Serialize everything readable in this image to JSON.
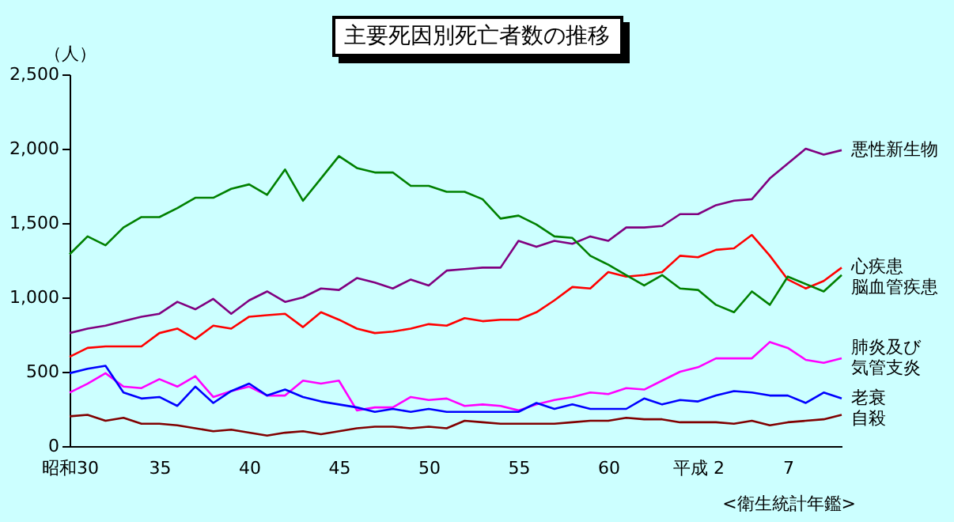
{
  "chart_data": {
    "type": "line",
    "title": "主要死因別死亡者数の推移",
    "ylabel": "（人）",
    "annotations": [
      "<衛生統計年鑑>"
    ],
    "categories": [
      "昭和30",
      null,
      null,
      null,
      null,
      "35",
      null,
      null,
      null,
      null,
      "40",
      null,
      null,
      null,
      null,
      "45",
      null,
      null,
      null,
      null,
      "50",
      null,
      null,
      null,
      null,
      "55",
      null,
      null,
      null,
      null,
      "60",
      null,
      null,
      null,
      null,
      "平成 2",
      null,
      null,
      null,
      null,
      "7",
      null,
      null,
      null
    ],
    "ylim": [
      0,
      2500
    ],
    "yticks": [
      0,
      {
        "value": 500,
        "label": "500"
      },
      {
        "value": 1000,
        "label": "1,000"
      },
      {
        "value": 1500,
        "label": "1,500"
      },
      {
        "value": 2000,
        "label": "2,000"
      },
      {
        "value": 2500,
        "label": "2,500"
      }
    ],
    "series": [
      {
        "name": "悪性新生物",
        "color": "#800080",
        "values": [
          760,
          790,
          810,
          840,
          870,
          890,
          970,
          920,
          990,
          890,
          980,
          1040,
          970,
          1000,
          1060,
          1050,
          1130,
          1100,
          1060,
          1120,
          1080,
          1180,
          1190,
          1200,
          1200,
          1380,
          1340,
          1380,
          1360,
          1410,
          1380,
          1470,
          1470,
          1480,
          1560,
          1560,
          1620,
          1650,
          1660,
          1800,
          1900,
          2000,
          1960,
          1990
        ]
      },
      {
        "name": "心疾患",
        "color": "#ff0000",
        "values": [
          600,
          660,
          670,
          670,
          670,
          760,
          790,
          720,
          810,
          790,
          870,
          880,
          890,
          800,
          900,
          850,
          790,
          760,
          770,
          790,
          820,
          810,
          860,
          840,
          850,
          850,
          900,
          980,
          1070,
          1060,
          1170,
          1140,
          1150,
          1170,
          1280,
          1270,
          1320,
          1330,
          1420,
          1280,
          1120,
          1060,
          1110,
          1200
        ]
      },
      {
        "name": "脳血管疾患",
        "color": "#008000",
        "values": [
          1290,
          1410,
          1350,
          1470,
          1540,
          1540,
          1600,
          1670,
          1670,
          1730,
          1760,
          1690,
          1860,
          1650,
          1800,
          1950,
          1870,
          1840,
          1840,
          1750,
          1750,
          1710,
          1710,
          1660,
          1530,
          1550,
          1490,
          1410,
          1400,
          1280,
          1220,
          1150,
          1080,
          1150,
          1060,
          1050,
          950,
          900,
          1040,
          950,
          1140,
          1090,
          1040,
          1150
        ]
      },
      {
        "name": "肺炎及び気管支炎",
        "color": "#ff00ff",
        "values": [
          360,
          420,
          490,
          400,
          390,
          450,
          400,
          470,
          330,
          370,
          400,
          340,
          340,
          440,
          420,
          440,
          240,
          260,
          260,
          330,
          310,
          320,
          270,
          280,
          270,
          240,
          280,
          310,
          330,
          360,
          350,
          390,
          380,
          440,
          500,
          530,
          590,
          590,
          590,
          700,
          660,
          580,
          560,
          590
        ]
      },
      {
        "name": "老衰",
        "color": "#0000ff",
        "values": [
          490,
          520,
          540,
          360,
          320,
          330,
          270,
          400,
          290,
          370,
          420,
          340,
          380,
          330,
          300,
          280,
          260,
          230,
          250,
          230,
          250,
          230,
          230,
          230,
          230,
          230,
          290,
          250,
          280,
          250,
          250,
          250,
          320,
          280,
          310,
          300,
          340,
          370,
          360,
          340,
          340,
          290,
          360,
          320
        ]
      },
      {
        "name": "自殺",
        "color": "#800000",
        "values": [
          200,
          210,
          170,
          190,
          150,
          150,
          140,
          120,
          100,
          110,
          90,
          70,
          90,
          100,
          80,
          100,
          120,
          130,
          130,
          120,
          130,
          120,
          170,
          160,
          150,
          150,
          150,
          150,
          160,
          170,
          170,
          190,
          180,
          180,
          160,
          160,
          160,
          150,
          170,
          140,
          160,
          170,
          180,
          210
        ]
      }
    ]
  }
}
